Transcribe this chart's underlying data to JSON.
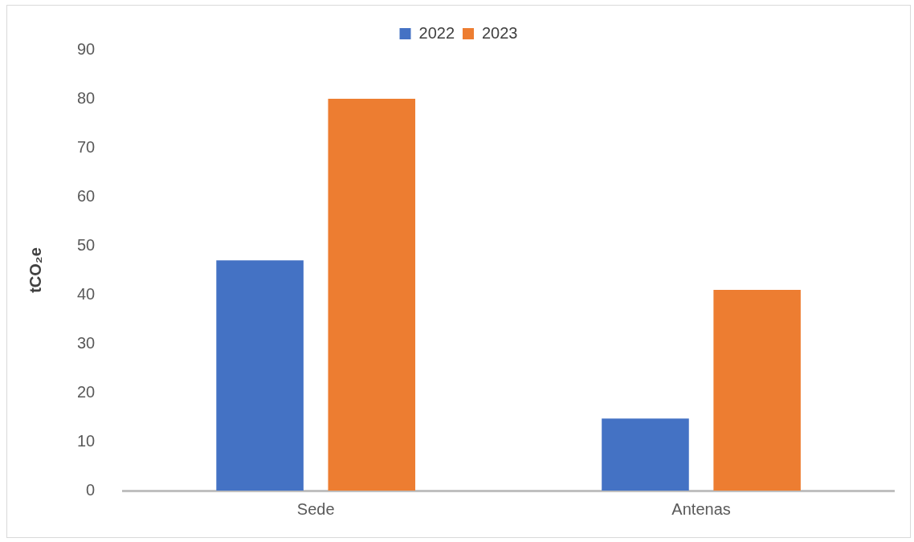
{
  "chart_data": {
    "type": "bar",
    "ylabel": "tCO₂e",
    "categories": [
      "Sede",
      "Antenas"
    ],
    "series": [
      {
        "name": "2022",
        "color": "#4472c4",
        "values": [
          47,
          14.7
        ]
      },
      {
        "name": "2023",
        "color": "#ed7d31",
        "values": [
          80,
          41
        ]
      }
    ],
    "ylim": [
      0,
      90
    ],
    "yticks": [
      0,
      10,
      20,
      30,
      40,
      50,
      60,
      70,
      80,
      90
    ],
    "grid": false,
    "legend": "top"
  }
}
